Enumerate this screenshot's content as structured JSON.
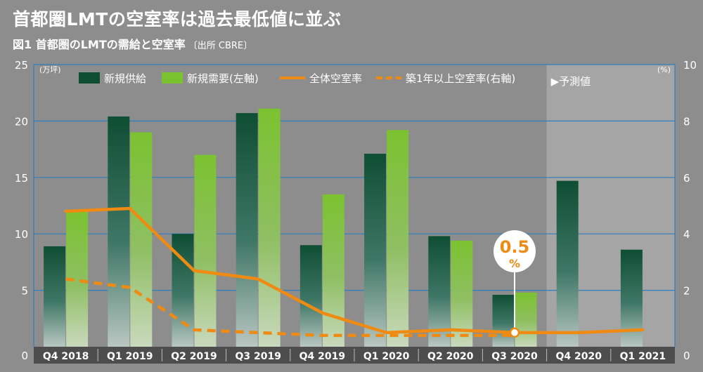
{
  "headline": "首都圏LMTの空室率は過去最低値に並ぶ",
  "subtitle": {
    "figure": "図1 首都圏のLMTの需給と空室率",
    "source": "〔出所 CBRE〕"
  },
  "chart_data": {
    "type": "bar",
    "categories": [
      "Q4 2018",
      "Q1 2019",
      "Q2 2019",
      "Q3 2019",
      "Q4 2019",
      "Q1 2020",
      "Q2 2020",
      "Q3 2020",
      "Q4 2020",
      "Q1 2021"
    ],
    "forecast_label": "▶予測値",
    "forecast_start_index": 8,
    "y_left": {
      "unit": "(万坪)",
      "ticks": [
        0,
        5,
        10,
        15,
        20,
        25
      ],
      "ylim": [
        0,
        25
      ]
    },
    "y_right": {
      "unit": "(%)",
      "ticks": [
        0,
        2,
        4,
        6,
        8,
        10
      ],
      "ylim": [
        0,
        10
      ]
    },
    "grid": true,
    "legend_position": "top",
    "series": [
      {
        "name": "新規供給",
        "kind": "bar",
        "axis": "left",
        "color": "#0e4e33",
        "values": [
          8.9,
          20.4,
          10.0,
          20.7,
          9.0,
          17.1,
          9.8,
          4.6,
          14.7,
          8.6
        ]
      },
      {
        "name": "新規需要(左軸)",
        "kind": "bar",
        "axis": "left",
        "color": "#7bc230",
        "values": [
          12.0,
          19.0,
          17.0,
          21.1,
          13.5,
          19.2,
          9.4,
          4.8,
          null,
          null
        ]
      },
      {
        "name": "全体空室率",
        "kind": "line",
        "axis": "right",
        "color": "#ef8a12",
        "values": [
          4.8,
          4.9,
          2.7,
          2.4,
          1.2,
          0.5,
          0.6,
          0.5,
          0.5,
          0.6
        ]
      },
      {
        "name": "築1年以上空室率(右軸)",
        "kind": "line-dashed",
        "axis": "right",
        "color": "#ef8a12",
        "values": [
          2.4,
          2.1,
          0.6,
          0.5,
          0.4,
          0.4,
          0.4,
          0.4,
          null,
          null
        ]
      }
    ],
    "annotation": {
      "value": "0.5",
      "unit": "%",
      "index": 7,
      "color": "#ef8a12"
    }
  }
}
